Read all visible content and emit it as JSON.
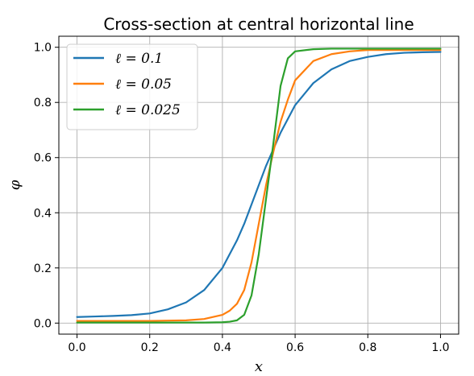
{
  "chart_data": {
    "type": "line",
    "title": "Cross-section at central horizontal line",
    "xlabel": "x",
    "ylabel": "φ",
    "xlim": [
      -0.05,
      1.05
    ],
    "ylim": [
      -0.04,
      1.04
    ],
    "xticks": [
      0.0,
      0.2,
      0.4,
      0.6,
      0.8,
      1.0
    ],
    "xtick_labels": [
      "0.0",
      "0.2",
      "0.4",
      "0.6",
      "0.8",
      "1.0"
    ],
    "yticks": [
      0.0,
      0.2,
      0.4,
      0.6,
      0.8,
      1.0
    ],
    "ytick_labels": [
      "0.0",
      "0.2",
      "0.4",
      "0.6",
      "0.8",
      "1.0"
    ],
    "grid": true,
    "legend_position": "top-left",
    "x": [
      0.0,
      0.05,
      0.1,
      0.15,
      0.2,
      0.25,
      0.3,
      0.35,
      0.4,
      0.42,
      0.44,
      0.46,
      0.48,
      0.5,
      0.52,
      0.53,
      0.54,
      0.56,
      0.58,
      0.6,
      0.65,
      0.7,
      0.75,
      0.8,
      0.85,
      0.9,
      0.95,
      1.0
    ],
    "series": [
      {
        "name": "ℓ = 0.1",
        "color": "#1f77b4",
        "values": [
          0.022,
          0.024,
          0.026,
          0.029,
          0.035,
          0.05,
          0.075,
          0.12,
          0.2,
          0.25,
          0.3,
          0.36,
          0.43,
          0.5,
          0.57,
          0.6,
          0.63,
          0.69,
          0.74,
          0.79,
          0.87,
          0.92,
          0.95,
          0.965,
          0.975,
          0.98,
          0.982,
          0.983
        ]
      },
      {
        "name": "ℓ = 0.05",
        "color": "#ff7f0e",
        "values": [
          0.008,
          0.008,
          0.008,
          0.008,
          0.008,
          0.009,
          0.01,
          0.015,
          0.03,
          0.045,
          0.07,
          0.12,
          0.22,
          0.36,
          0.5,
          0.56,
          0.62,
          0.73,
          0.81,
          0.88,
          0.95,
          0.975,
          0.985,
          0.99,
          0.99,
          0.99,
          0.99,
          0.99
        ]
      },
      {
        "name": "ℓ = 0.025",
        "color": "#2ca02c",
        "values": [
          0.002,
          0.002,
          0.002,
          0.002,
          0.002,
          0.002,
          0.002,
          0.002,
          0.003,
          0.005,
          0.01,
          0.03,
          0.1,
          0.25,
          0.45,
          0.55,
          0.65,
          0.86,
          0.96,
          0.985,
          0.993,
          0.995,
          0.995,
          0.995,
          0.995,
          0.995,
          0.995,
          0.995
        ]
      }
    ]
  }
}
